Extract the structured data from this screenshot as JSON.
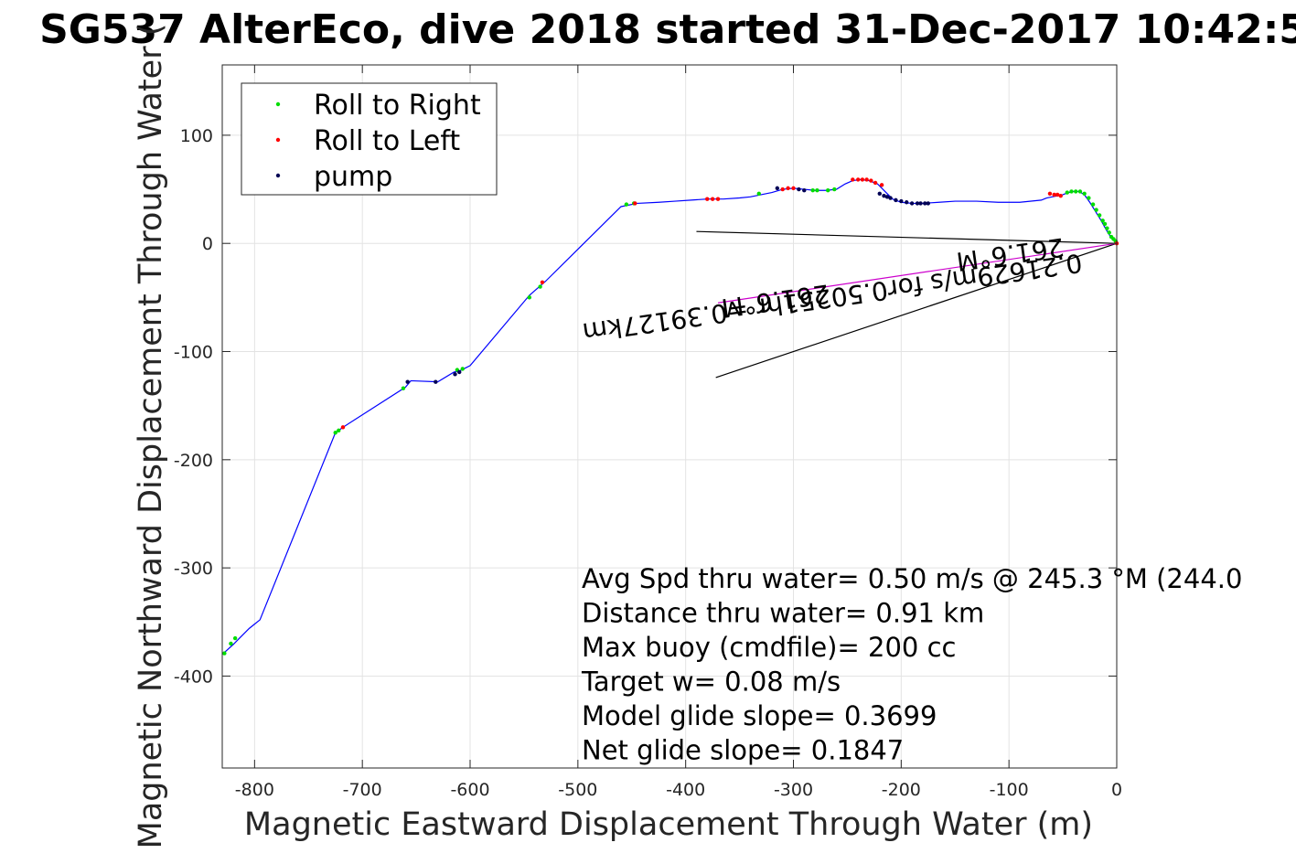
{
  "chart_data": {
    "type": "line",
    "title": "SG537 AlterEco, dive 2018 started 31-Dec-2017 10:42:5",
    "xlabel": "Magnetic Eastward Displacement Through Water (m)",
    "ylabel": "Magnetic Northward Displacement Through Water (",
    "xlim": [
      -830,
      0
    ],
    "ylim": [
      -485,
      165
    ],
    "xticks": [
      -800,
      -700,
      -600,
      -500,
      -400,
      -300,
      -200,
      -100,
      0
    ],
    "yticks": [
      100,
      0,
      -100,
      -200,
      -300,
      -400
    ],
    "grid": true,
    "legend_position": "top-left",
    "legend": [
      {
        "label": "Roll to Right",
        "color": "#00dd00"
      },
      {
        "label": "Roll to Left",
        "color": "#ff0000"
      },
      {
        "label": "pump",
        "color": "#000055"
      }
    ],
    "track_color": "#0000ff",
    "track": {
      "x": [
        0,
        -5,
        -10,
        -15,
        -20,
        -25,
        -30,
        -35,
        -40,
        -45,
        -50,
        -55,
        -60,
        -65,
        -70,
        -90,
        -110,
        -130,
        -150,
        -165,
        -180,
        -190,
        -200,
        -208,
        -215,
        -222,
        -230,
        -238,
        -245,
        -252,
        -260,
        -270,
        -280,
        -290,
        -300,
        -310,
        -320,
        -330,
        -340,
        -350,
        -365,
        -380,
        -395,
        -410,
        -425,
        -445,
        -460,
        -530,
        -545,
        -600,
        -610,
        -615,
        -630,
        -655,
        -660,
        -718,
        -725,
        -795,
        -800,
        -805,
        -815,
        -820,
        -830
      ],
      "y": [
        0,
        5,
        13,
        22,
        30,
        38,
        45,
        48,
        48,
        47,
        45,
        44,
        43,
        42,
        40,
        38,
        38,
        39,
        39,
        38,
        37,
        37,
        38,
        41,
        48,
        55,
        58,
        59,
        58,
        55,
        50,
        49,
        49,
        50,
        51,
        50,
        47,
        45,
        43,
        42,
        41,
        41,
        40,
        39,
        38,
        37,
        34,
        -35,
        -48,
        -113,
        -118,
        -119,
        -128,
        -127,
        -133,
        -170,
        -175,
        -348,
        -352,
        -356,
        -366,
        -371,
        -380
      ]
    },
    "roll_right_x": [
      -1,
      -3,
      -5,
      -7,
      -9,
      -11,
      -13,
      -16,
      -19,
      -22,
      -26,
      -30,
      -34,
      -38,
      -42,
      -46,
      -282,
      -278,
      -268,
      -262,
      -332,
      -448,
      -455,
      -535,
      -545,
      -612,
      -607,
      -662,
      -725,
      -722,
      -818,
      -822,
      -828
    ],
    "roll_right_y": [
      2,
      4,
      6,
      10,
      14,
      18,
      21,
      26,
      31,
      36,
      42,
      46,
      48,
      48,
      48,
      47,
      49,
      49,
      49,
      50,
      46,
      37,
      36,
      -40,
      -50,
      -117,
      -116,
      -134,
      -175,
      -173,
      -365,
      -370,
      -379
    ],
    "roll_left_x": [
      0,
      -52,
      -55,
      -58,
      -62,
      -245,
      -240,
      -236,
      -232,
      -228,
      -224,
      -218,
      -300,
      -305,
      -310,
      -380,
      -375,
      -370,
      -533,
      -718,
      -447
    ],
    "roll_left_y": [
      0,
      44,
      45,
      45,
      46,
      59,
      59,
      59,
      59,
      58,
      56,
      54,
      51,
      51,
      50,
      41,
      41,
      41,
      -36,
      -170,
      37
    ],
    "pump_x": [
      -175,
      -178,
      -182,
      -185,
      -190,
      -195,
      -200,
      -205,
      -210,
      -213,
      -216,
      -220,
      -290,
      -295,
      -315,
      -610,
      -614,
      -632,
      -658
    ],
    "pump_y": [
      37,
      37,
      37,
      37,
      37,
      38,
      39,
      40,
      42,
      43,
      44,
      46,
      49,
      50,
      51,
      -119,
      -121,
      -128,
      -128
    ],
    "annotation_lines": [
      {
        "x": [
          0,
          -390
        ],
        "y": [
          0,
          11
        ]
      },
      {
        "x": [
          0,
          -372
        ],
        "y": [
          0,
          -124
        ]
      },
      {
        "x": [
          0,
          -370
        ],
        "y": [
          0,
          -55
        ],
        "color": "#cc00cc"
      }
    ],
    "annotation_texts": [
      {
        "text": "0.21629m/s for0.50251hr =0.39127km",
        "x": -265,
        "y": -42,
        "angle": 172
      },
      {
        "text": "261.6°M",
        "x": -318,
        "y": -45,
        "angle": 172
      },
      {
        "text": "261.6°M",
        "x": -100,
        "y": -2,
        "angle": 172
      }
    ],
    "stats": [
      "Avg Spd thru water=  0.50 m/s @ 245.3 °M (244.0",
      "Distance thru water=  0.91 km",
      "Max buoy (cmdfile)= 200 cc",
      "Target w= 0.08 m/s",
      "Model glide slope= 0.3699",
      "Net glide slope= 0.1847"
    ]
  }
}
